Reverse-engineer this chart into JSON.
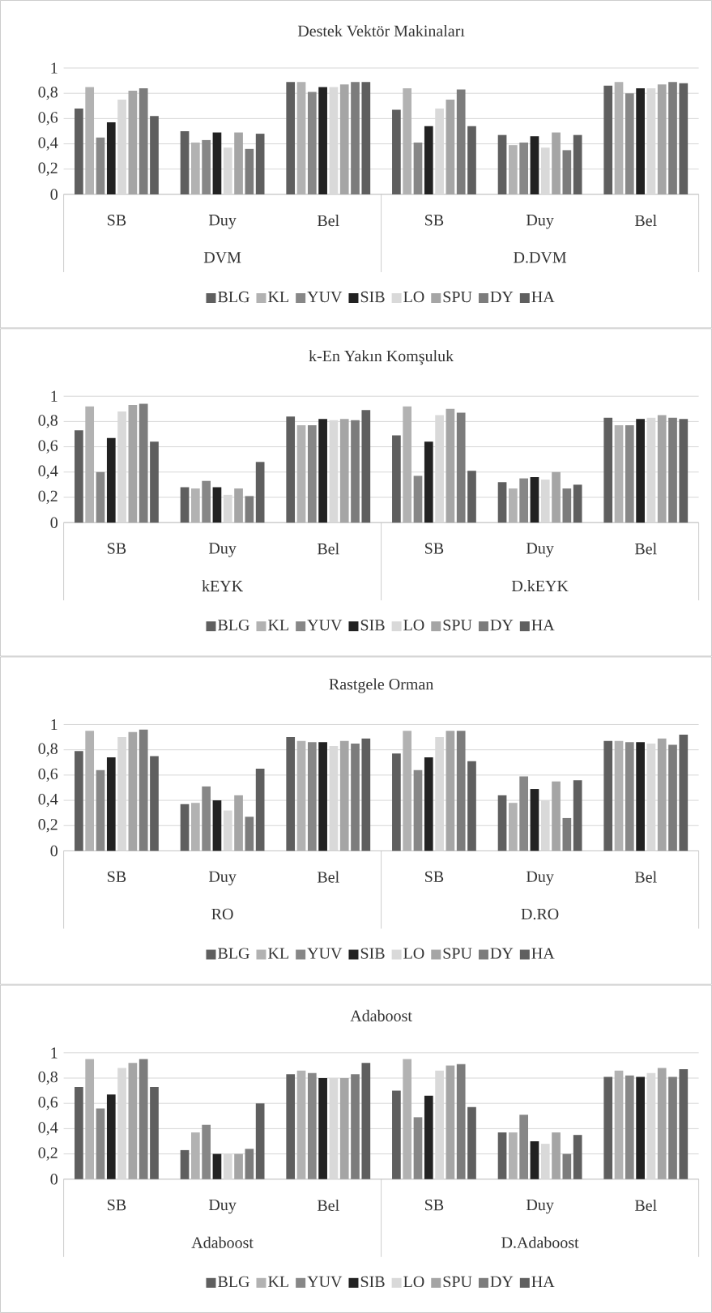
{
  "chart_data": [
    {
      "type": "bar",
      "title": "Destek Vektör Makinaları",
      "categories": [
        "SB",
        "Duy",
        "Bel",
        "SB",
        "Duy",
        "Bel"
      ],
      "annotations": [
        "DVM",
        "D.DVM"
      ],
      "ylim": [
        0,
        1
      ],
      "yticks": [
        0,
        {
          "value": 0.2,
          "label": "0,2"
        },
        {
          "value": 0.4,
          "label": "0,4"
        },
        {
          "value": 0.6,
          "label": "0,6"
        },
        {
          "value": 0.8,
          "label": "0,8"
        },
        1
      ],
      "grid": "y",
      "legend": "bottom",
      "series": [
        {
          "name": "BLG",
          "color": "#5f5f5f",
          "values": [
            0.68,
            0.5,
            0.89,
            0.67,
            0.47,
            0.86
          ]
        },
        {
          "name": "KL",
          "color": "#b2b2b2",
          "values": [
            0.85,
            0.41,
            0.89,
            0.84,
            0.39,
            0.89
          ]
        },
        {
          "name": "YUV",
          "color": "#878787",
          "values": [
            0.45,
            0.43,
            0.81,
            0.41,
            0.41,
            0.8
          ]
        },
        {
          "name": "SIB",
          "color": "#222222",
          "values": [
            0.57,
            0.49,
            0.85,
            0.54,
            0.46,
            0.84
          ]
        },
        {
          "name": "LO",
          "color": "#d9d9d9",
          "values": [
            0.75,
            0.37,
            0.85,
            0.68,
            0.37,
            0.84
          ]
        },
        {
          "name": "SPU",
          "color": "#a5a5a5",
          "values": [
            0.82,
            0.49,
            0.87,
            0.75,
            0.49,
            0.87
          ]
        },
        {
          "name": "DY",
          "color": "#7c7c7c",
          "values": [
            0.84,
            0.36,
            0.89,
            0.83,
            0.35,
            0.89
          ]
        },
        {
          "name": "HA",
          "color": "#5f5f5f",
          "values": [
            0.62,
            0.48,
            0.89,
            0.54,
            0.47,
            0.88
          ]
        }
      ]
    },
    {
      "type": "bar",
      "title": "k-En Yakın Komşuluk",
      "categories": [
        "SB",
        "Duy",
        "Bel",
        "SB",
        "Duy",
        "Bel"
      ],
      "annotations": [
        "kEYK",
        "D.kEYK"
      ],
      "ylim": [
        0,
        1
      ],
      "yticks": [
        0,
        {
          "value": 0.2,
          "label": "0,2"
        },
        {
          "value": 0.4,
          "label": "0,4"
        },
        {
          "value": 0.6,
          "label": "0,6"
        },
        {
          "value": 0.8,
          "label": "0,8"
        },
        1
      ],
      "grid": "y",
      "legend": "bottom",
      "series": [
        {
          "name": "BLG",
          "color": "#5f5f5f",
          "values": [
            0.73,
            0.28,
            0.84,
            0.69,
            0.32,
            0.83
          ]
        },
        {
          "name": "KL",
          "color": "#b2b2b2",
          "values": [
            0.92,
            0.27,
            0.77,
            0.92,
            0.27,
            0.77
          ]
        },
        {
          "name": "YUV",
          "color": "#878787",
          "values": [
            0.4,
            0.33,
            0.77,
            0.37,
            0.35,
            0.77
          ]
        },
        {
          "name": "SIB",
          "color": "#222222",
          "values": [
            0.67,
            0.28,
            0.82,
            0.64,
            0.36,
            0.82
          ]
        },
        {
          "name": "LO",
          "color": "#d9d9d9",
          "values": [
            0.88,
            0.22,
            0.81,
            0.85,
            0.34,
            0.83
          ]
        },
        {
          "name": "SPU",
          "color": "#a5a5a5",
          "values": [
            0.93,
            0.27,
            0.82,
            0.9,
            0.4,
            0.85
          ]
        },
        {
          "name": "DY",
          "color": "#7c7c7c",
          "values": [
            0.94,
            0.21,
            0.81,
            0.87,
            0.27,
            0.83
          ]
        },
        {
          "name": "HA",
          "color": "#5f5f5f",
          "values": [
            0.64,
            0.48,
            0.89,
            0.41,
            0.3,
            0.82
          ]
        }
      ]
    },
    {
      "type": "bar",
      "title": "Rastgele Orman",
      "categories": [
        "SB",
        "Duy",
        "Bel",
        "SB",
        "Duy",
        "Bel"
      ],
      "annotations": [
        "RO",
        "D.RO"
      ],
      "ylim": [
        0,
        1
      ],
      "yticks": [
        0,
        {
          "value": 0.2,
          "label": "0,2"
        },
        {
          "value": 0.4,
          "label": "0,4"
        },
        {
          "value": 0.6,
          "label": "0,6"
        },
        {
          "value": 0.8,
          "label": "0,8"
        },
        1
      ],
      "grid": "y",
      "legend": "bottom",
      "series": [
        {
          "name": "BLG",
          "color": "#5f5f5f",
          "values": [
            0.79,
            0.37,
            0.9,
            0.77,
            0.44,
            0.87
          ]
        },
        {
          "name": "KL",
          "color": "#b2b2b2",
          "values": [
            0.95,
            0.38,
            0.87,
            0.95,
            0.38,
            0.87
          ]
        },
        {
          "name": "YUV",
          "color": "#878787",
          "values": [
            0.64,
            0.51,
            0.86,
            0.64,
            0.59,
            0.86
          ]
        },
        {
          "name": "SIB",
          "color": "#222222",
          "values": [
            0.74,
            0.4,
            0.86,
            0.74,
            0.49,
            0.86
          ]
        },
        {
          "name": "LO",
          "color": "#d9d9d9",
          "values": [
            0.9,
            0.32,
            0.83,
            0.9,
            0.4,
            0.85
          ]
        },
        {
          "name": "SPU",
          "color": "#a5a5a5",
          "values": [
            0.94,
            0.44,
            0.87,
            0.95,
            0.55,
            0.89
          ]
        },
        {
          "name": "DY",
          "color": "#7c7c7c",
          "values": [
            0.96,
            0.27,
            0.85,
            0.95,
            0.26,
            0.84
          ]
        },
        {
          "name": "HA",
          "color": "#5f5f5f",
          "values": [
            0.75,
            0.65,
            0.89,
            0.71,
            0.56,
            0.92
          ]
        }
      ]
    },
    {
      "type": "bar",
      "title": "Adaboost",
      "categories": [
        "SB",
        "Duy",
        "Bel",
        "SB",
        "Duy",
        "Bel"
      ],
      "annotations": [
        "Adaboost",
        "D.Adaboost"
      ],
      "ylim": [
        0,
        1
      ],
      "yticks": [
        0,
        {
          "value": 0.2,
          "label": "0,2"
        },
        {
          "value": 0.4,
          "label": "0,4"
        },
        {
          "value": 0.6,
          "label": "0,6"
        },
        {
          "value": 0.8,
          "label": "0,8"
        },
        1
      ],
      "grid": "y",
      "legend": "bottom",
      "series": [
        {
          "name": "BLG",
          "color": "#5f5f5f",
          "values": [
            0.73,
            0.23,
            0.83,
            0.7,
            0.37,
            0.81
          ]
        },
        {
          "name": "KL",
          "color": "#b2b2b2",
          "values": [
            0.95,
            0.37,
            0.86,
            0.95,
            0.37,
            0.86
          ]
        },
        {
          "name": "YUV",
          "color": "#878787",
          "values": [
            0.56,
            0.43,
            0.84,
            0.49,
            0.51,
            0.82
          ]
        },
        {
          "name": "SIB",
          "color": "#222222",
          "values": [
            0.67,
            0.2,
            0.8,
            0.66,
            0.3,
            0.81
          ]
        },
        {
          "name": "LO",
          "color": "#d9d9d9",
          "values": [
            0.88,
            0.2,
            0.8,
            0.86,
            0.28,
            0.84
          ]
        },
        {
          "name": "SPU",
          "color": "#a5a5a5",
          "values": [
            0.92,
            0.2,
            0.8,
            0.9,
            0.37,
            0.88
          ]
        },
        {
          "name": "DY",
          "color": "#7c7c7c",
          "values": [
            0.95,
            0.24,
            0.83,
            0.91,
            0.2,
            0.81
          ]
        },
        {
          "name": "HA",
          "color": "#5f5f5f",
          "values": [
            0.73,
            0.6,
            0.92,
            0.57,
            0.35,
            0.87
          ]
        }
      ]
    }
  ]
}
